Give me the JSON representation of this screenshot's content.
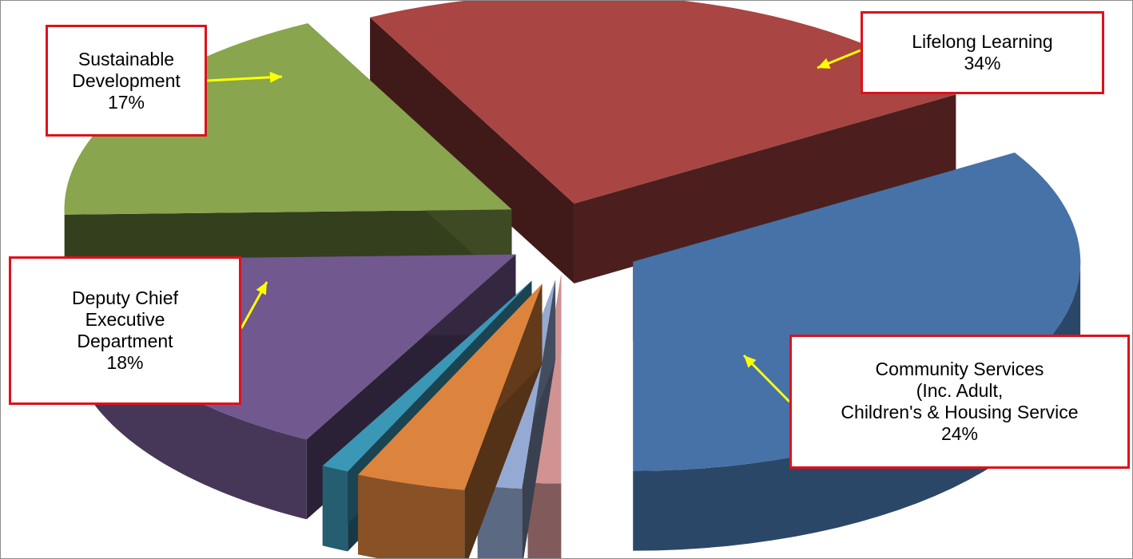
{
  "chart_data": {
    "type": "pie",
    "slices": [
      {
        "label_lines": [
          "Lifelong Learning"
        ],
        "percent_label": "34%",
        "value": 34,
        "color": "#4672a8"
      },
      {
        "label_lines": [
          "Community Services",
          "(Inc. Adult,",
          "Children's & Housing Service"
        ],
        "percent_label": "24%",
        "value": 24,
        "color": "#a94543"
      },
      {
        "label_lines": [
          "Deputy Chief",
          "Executive",
          "Department"
        ],
        "percent_label": "18%",
        "value": 18,
        "color": "#89a54e"
      },
      {
        "label_lines": [
          "Sustainable",
          "Development"
        ],
        "percent_label": "17%",
        "value": 17,
        "color": "#71588f"
      },
      {
        "value": 1,
        "color": "#3b97b6"
      },
      {
        "value": 4,
        "color": "#dc843d"
      },
      {
        "value": 1.6,
        "color": "#95aad3"
      },
      {
        "value": 1.2,
        "color": "#d09392"
      }
    ],
    "legend": "none",
    "style": "exploded-3d",
    "callout_border_color": "#e0101a",
    "arrow_color": "#ffff00"
  }
}
